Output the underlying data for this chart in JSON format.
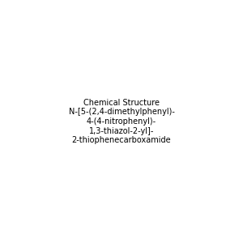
{
  "title": "N-[5-(2,4-dimethylphenyl)-4-(4-nitrophenyl)-1,3-thiazol-2-yl]-2-thiophenecarboxamide",
  "background_color": "#e8e8e8",
  "figsize": [
    3.0,
    3.0
  ],
  "dpi": 100
}
